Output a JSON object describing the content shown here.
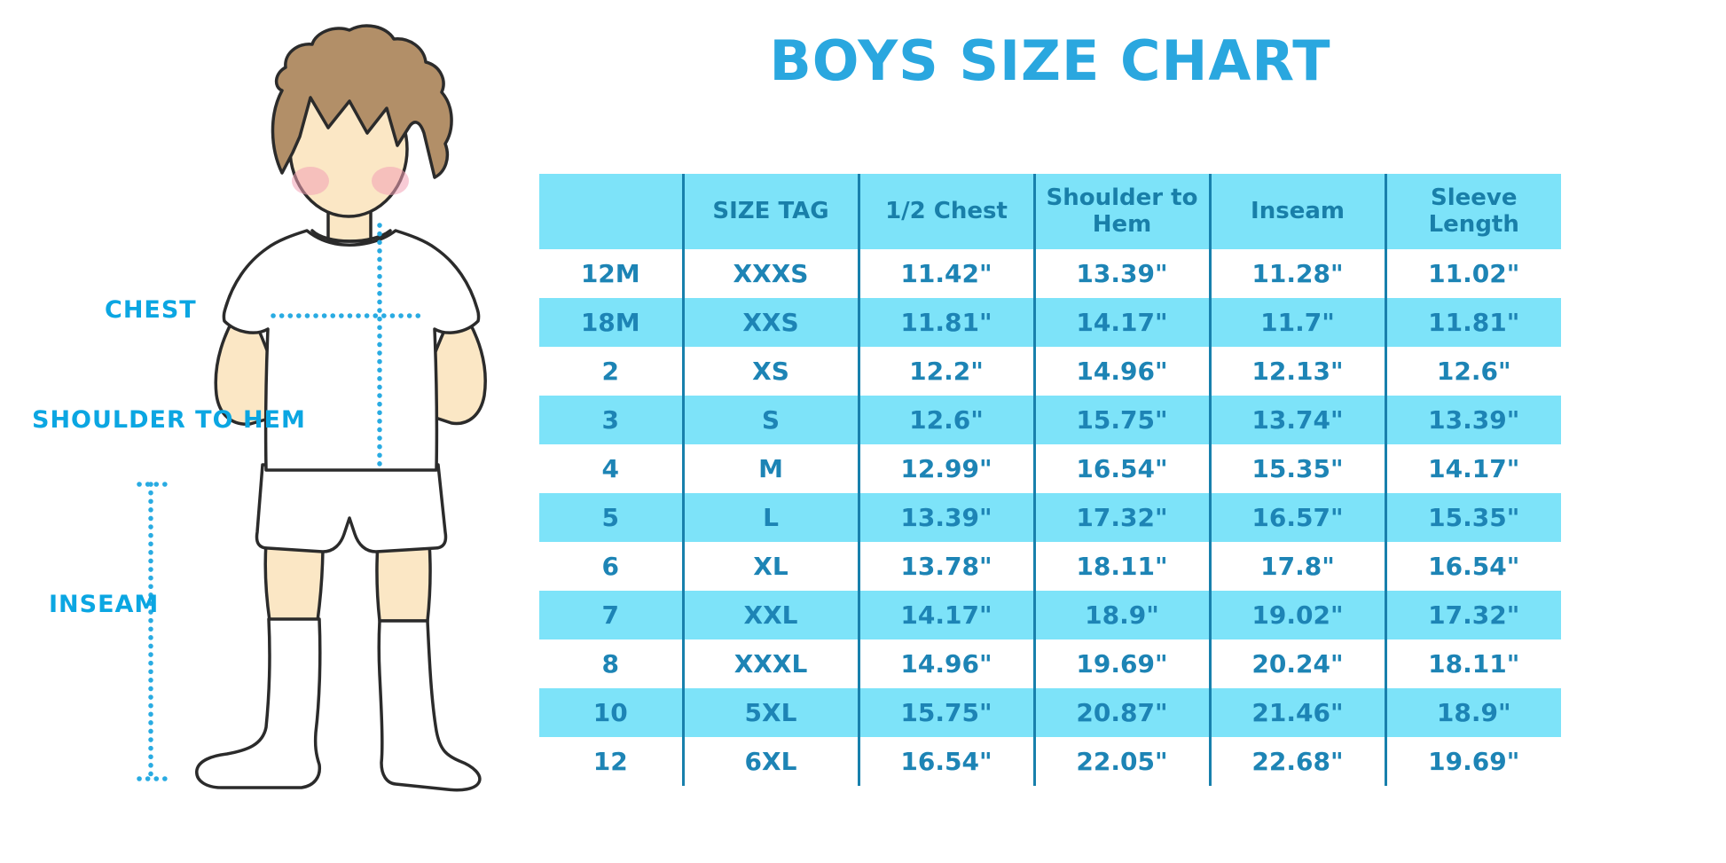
{
  "title": "BOYS SIZE CHART",
  "palette": {
    "title_blue": "#2aa7df",
    "table_fill": "#7de3f9",
    "header_text": "#197fa9",
    "cell_text": "#1d84b5",
    "grid_line": "#1880ac",
    "label_cyan": "#0ba6e2",
    "dotted_line": "#29abe2",
    "skin": "#fbe7c5",
    "hair": "#b28f68",
    "outline": "#2b2b2b"
  },
  "diagram": {
    "labels": {
      "chest": "CHEST",
      "shoulder_to_hem": "SHOULDER TO HEM",
      "inseam": "INSEAM"
    }
  },
  "chart_data": {
    "type": "table",
    "title": "BOYS SIZE CHART",
    "columns": [
      "",
      "SIZE TAG",
      "1/2 Chest",
      "Shoulder to Hem",
      "Inseam",
      "Sleeve Length"
    ],
    "rows": [
      [
        "12M",
        "XXXS",
        "11.42\"",
        "13.39\"",
        "11.28\"",
        "11.02\""
      ],
      [
        "18M",
        "XXS",
        "11.81\"",
        "14.17\"",
        "11.7\"",
        "11.81\""
      ],
      [
        "2",
        "XS",
        "12.2\"",
        "14.96\"",
        "12.13\"",
        "12.6\""
      ],
      [
        "3",
        "S",
        "12.6\"",
        "15.75\"",
        "13.74\"",
        "13.39\""
      ],
      [
        "4",
        "M",
        "12.99\"",
        "16.54\"",
        "15.35\"",
        "14.17\""
      ],
      [
        "5",
        "L",
        "13.39\"",
        "17.32\"",
        "16.57\"",
        "15.35\""
      ],
      [
        "6",
        "XL",
        "13.78\"",
        "18.11\"",
        "17.8\"",
        "16.54\""
      ],
      [
        "7",
        "XXL",
        "14.17\"",
        "18.9\"",
        "19.02\"",
        "17.32\""
      ],
      [
        "8",
        "XXXL",
        "14.96\"",
        "19.69\"",
        "20.24\"",
        "18.11\""
      ],
      [
        "10",
        "5XL",
        "15.75\"",
        "20.87\"",
        "21.46\"",
        "18.9\""
      ],
      [
        "12",
        "6XL",
        "16.54\"",
        "22.05\"",
        "22.68\"",
        "19.69\""
      ]
    ],
    "units": "inches",
    "layout_hints": {
      "striped_rows": "alternate light blue starting at 2nd data row",
      "grid": "vertical separators only",
      "header_background": "#7de3f9"
    }
  }
}
